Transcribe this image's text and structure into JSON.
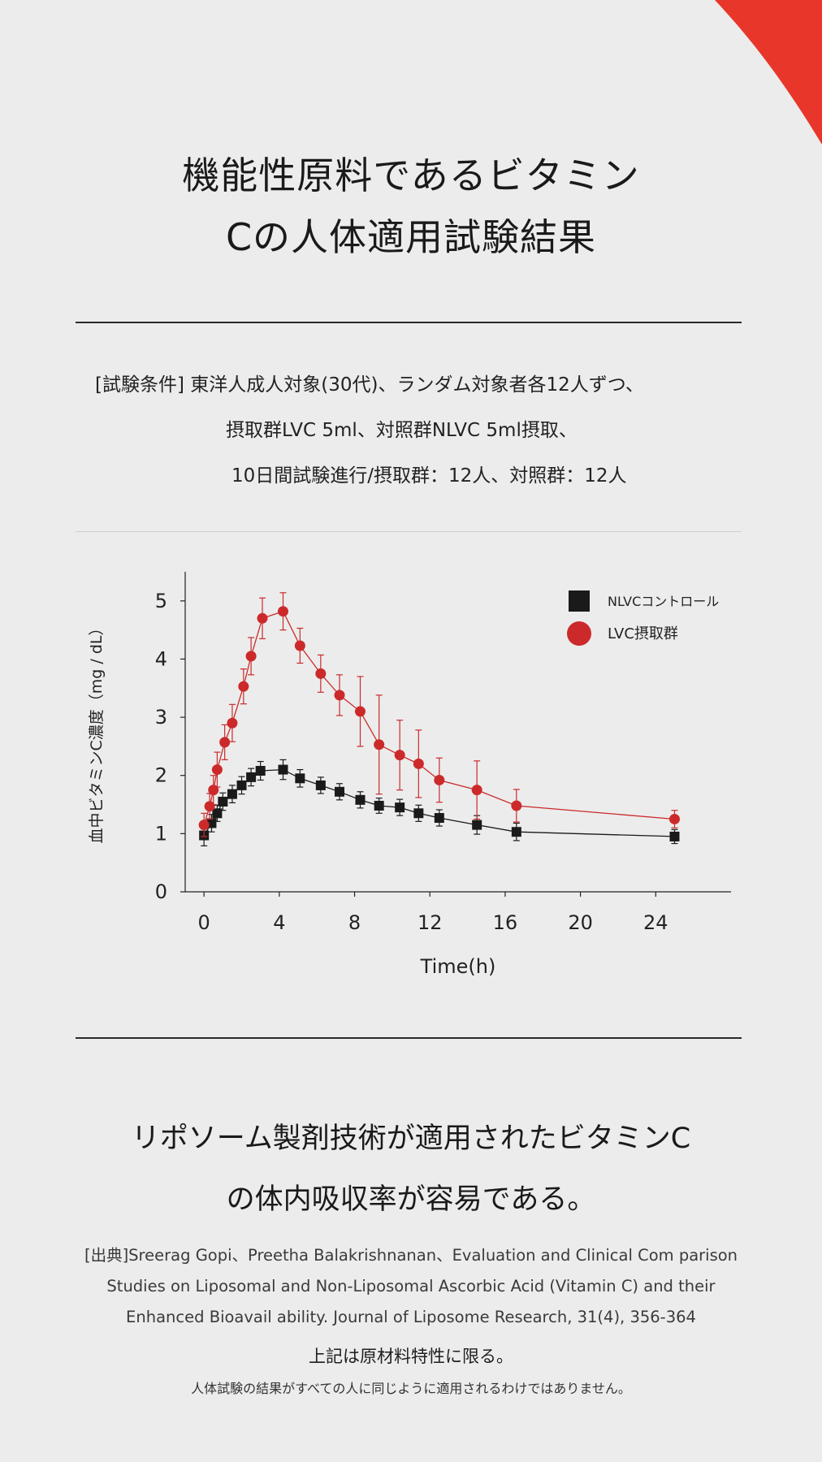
{
  "colors": {
    "background": "#ececec",
    "accent": "#e8362a",
    "lvc": "#cc2a2a",
    "nlvc": "#1a1a1a"
  },
  "header": {
    "title_lines": [
      "機能性原料であるビタミン",
      "Cの人体適用試験結果"
    ]
  },
  "conditions": {
    "lines": [
      "[試験条件] 東洋人成人対象(30代)、ランダム対象者各12人ずつ、",
      "摂取群LVC 5ml、対照群NLVC 5ml摂取、",
      "10日間試験進行/摂取群：12人、対照群：12人"
    ]
  },
  "chart_data": {
    "type": "line",
    "xlabel": "Time(h)",
    "ylabel": "血中ビタミンC濃度（mg / dL）",
    "xlim": [
      -1,
      28
    ],
    "ylim": [
      0,
      5.5
    ],
    "xticks": [
      0,
      4,
      8,
      12,
      16,
      20,
      24
    ],
    "yticks": [
      0,
      1,
      2,
      3,
      4,
      5
    ],
    "grid": false,
    "legend_position": "top-right",
    "series": [
      {
        "name": "NLVCコントロール",
        "marker": "square",
        "color": "#1a1a1a",
        "x": [
          0,
          0.4,
          0.7,
          1,
          1.5,
          2,
          2.5,
          3,
          4.2,
          5.1,
          6.2,
          7.2,
          8.3,
          9.3,
          10.4,
          11.4,
          12.5,
          14.5,
          16.6,
          25
        ],
        "y": [
          0.97,
          1.18,
          1.35,
          1.55,
          1.68,
          1.83,
          1.97,
          2.08,
          2.1,
          1.95,
          1.83,
          1.72,
          1.58,
          1.48,
          1.45,
          1.35,
          1.27,
          1.15,
          1.03,
          0.95
        ],
        "error": [
          0.18,
          0.15,
          0.14,
          0.15,
          0.15,
          0.15,
          0.15,
          0.16,
          0.17,
          0.15,
          0.14,
          0.14,
          0.14,
          0.13,
          0.14,
          0.14,
          0.14,
          0.16,
          0.15,
          0.12
        ]
      },
      {
        "name": "LVC摂取群",
        "marker": "circle",
        "color": "#cc2a2a",
        "x": [
          0,
          0.3,
          0.5,
          0.7,
          1.1,
          1.5,
          2.1,
          2.5,
          3.1,
          4.2,
          5.1,
          6.2,
          7.2,
          8.3,
          9.3,
          10.4,
          11.4,
          12.5,
          14.5,
          16.6,
          25
        ],
        "y": [
          1.15,
          1.47,
          1.75,
          2.1,
          2.57,
          2.9,
          3.53,
          4.05,
          4.7,
          4.82,
          4.23,
          3.75,
          3.38,
          3.1,
          2.53,
          2.35,
          2.2,
          1.92,
          1.75,
          1.48,
          1.25
        ],
        "error": [
          0.2,
          0.22,
          0.25,
          0.3,
          0.3,
          0.32,
          0.3,
          0.32,
          0.35,
          0.32,
          0.3,
          0.32,
          0.35,
          0.6,
          0.85,
          0.6,
          0.58,
          0.38,
          0.5,
          0.28,
          0.15
        ]
      }
    ]
  },
  "conclusion": {
    "lines": [
      "リポソーム製剤技術が適用されたビタミンC",
      "の体内吸収率が容易である。"
    ]
  },
  "citation": {
    "lines": [
      "[出典]Sreerag Gopi、Preetha Balakrishnanan、Evaluation and Clinical Com parison",
      "Studies on Liposomal and Non-Liposomal Ascorbic Acid (Vitamin C) and their",
      "Enhanced Bioavail ability. Journal of Liposome Research, 31(4), 356-364"
    ]
  },
  "note": "上記は原材料特性に限る。",
  "disclaimer": "人体試験の結果がすべての人に同じように適用されるわけではありません。"
}
